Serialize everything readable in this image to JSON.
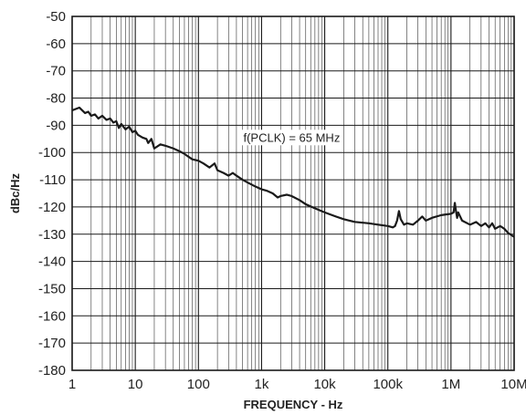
{
  "chart_data": {
    "type": "line",
    "xlabel": "FREQUENCY - Hz",
    "ylabel": "dBc/Hz",
    "x_scale": "log",
    "xlim": [
      1,
      10000000
    ],
    "ylim": [
      -180,
      -50
    ],
    "grid": true,
    "x_ticks": [
      {
        "value": 1,
        "label": "1"
      },
      {
        "value": 10,
        "label": "10"
      },
      {
        "value": 100,
        "label": "100"
      },
      {
        "value": 1000,
        "label": "1k"
      },
      {
        "value": 10000,
        "label": "10k"
      },
      {
        "value": 100000,
        "label": "100k"
      },
      {
        "value": 1000000,
        "label": "1M"
      },
      {
        "value": 10000000,
        "label": "10M"
      }
    ],
    "y_ticks": [
      -50,
      -60,
      -70,
      -80,
      -90,
      -100,
      -110,
      -120,
      -130,
      -140,
      -150,
      -160,
      -170,
      -180
    ],
    "annotations": [
      {
        "text": "f(PCLK) = 65 MHz",
        "x": 3000,
        "y": -96
      }
    ],
    "series": [
      {
        "color": "#1a1a1a",
        "x": [
          1,
          1.3,
          1.6,
          1.8,
          2,
          2.3,
          2.6,
          3,
          3.5,
          4,
          4.5,
          5,
          5.5,
          6,
          7,
          8,
          9,
          10,
          11,
          13,
          15,
          16,
          18,
          20,
          25,
          30,
          40,
          50,
          60,
          80,
          100,
          120,
          150,
          180,
          200,
          250,
          300,
          350,
          400,
          500,
          600,
          800,
          1000,
          1200,
          1500,
          1800,
          2000,
          2500,
          3000,
          4000,
          5000,
          7000,
          10000,
          15000,
          20000,
          30000,
          50000,
          70000,
          100000,
          120000,
          130000,
          140000,
          150000,
          160000,
          180000,
          200000,
          250000,
          300000,
          350000,
          400000,
          500000,
          700000,
          1000000,
          1100000,
          1150000,
          1200000,
          1250000,
          1300000,
          1500000,
          2000000,
          2500000,
          3000000,
          3500000,
          4000000,
          4500000,
          5000000,
          6000000,
          7000000,
          8000000,
          10000000
        ],
        "y": [
          -84.5,
          -83.5,
          -85.5,
          -85,
          -86.5,
          -86,
          -87.5,
          -86.5,
          -88,
          -87.5,
          -89,
          -88.5,
          -91,
          -89.5,
          -91.5,
          -90.5,
          -92.5,
          -92,
          -93.5,
          -94.5,
          -95,
          -96.5,
          -95,
          -98.5,
          -97,
          -97.5,
          -98.5,
          -99.5,
          -100.5,
          -102.5,
          -103,
          -104,
          -105.5,
          -104,
          -106.5,
          -107.5,
          -108.5,
          -107.5,
          -108.5,
          -110,
          -111,
          -112.5,
          -113.5,
          -114,
          -115,
          -116.5,
          -116,
          -115.5,
          -116,
          -117.5,
          -119,
          -120.5,
          -122,
          -123.5,
          -124.5,
          -125.5,
          -126,
          -126.5,
          -127,
          -127.5,
          -127,
          -125,
          -121.5,
          -124.5,
          -126.5,
          -126,
          -126.5,
          -125,
          -123.5,
          -125,
          -124,
          -123,
          -122.5,
          -122,
          -118.5,
          -121.5,
          -124,
          -122,
          -125,
          -126.5,
          -125.5,
          -127,
          -126,
          -127.5,
          -126,
          -128,
          -127,
          -128,
          -129.5,
          -131
        ]
      }
    ]
  }
}
